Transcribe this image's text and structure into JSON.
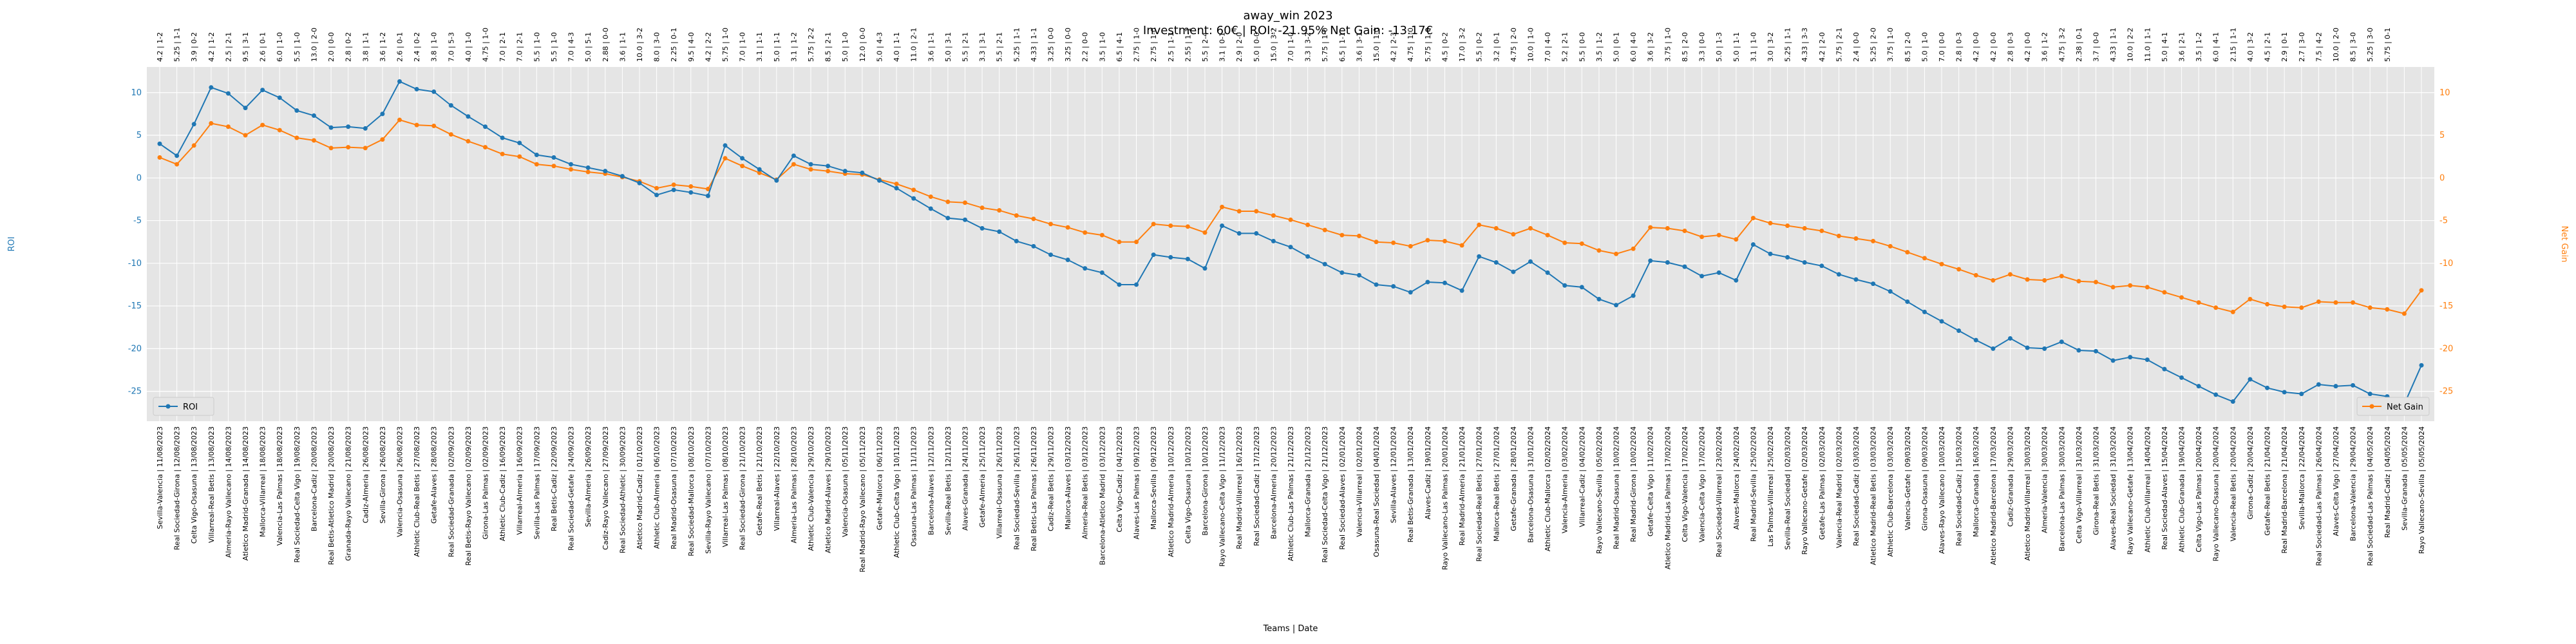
{
  "chart_data": {
    "type": "line",
    "title": "away_win 2023",
    "subtitle": "Investment: 60€ | ROI: -21.95% Net Gain: -13.17€",
    "xlabel": "Teams | Date",
    "ylabel": "ROI",
    "y2label": "Net Gain",
    "ylim": [
      -28.5,
      13
    ],
    "y2lim": [
      -28.5,
      13
    ],
    "yticks": [
      -25,
      -20,
      -15,
      -10,
      -5,
      0,
      5,
      10
    ],
    "y2ticks": [
      -25,
      -20,
      -15,
      -10,
      -5,
      0,
      5,
      10
    ],
    "grid": true,
    "legend": {
      "roi": "ROI",
      "net_gain": "Net Gain",
      "roi_position": "bottom-left",
      "net_gain_position": "bottom-right"
    },
    "colors": {
      "roi": "#1f77b4",
      "net_gain": "#ff7f0e",
      "plot_bg": "#e5e5e5",
      "grid": "#ffffff"
    },
    "categories": [
      "Sevilla-Valencia | 11/08/2023",
      "Real Sociedad-Girona | 12/08/2023",
      "Celta Vigo-Osasuna | 13/08/2023",
      "Villarreal-Real Betis | 13/08/2023",
      "Almeria-Rayo Vallecano | 14/08/2023",
      "Atletico Madrid-Granada | 14/08/2023",
      "Mallorca-Villarreal | 18/08/2023",
      "Valencia-Las Palmas | 18/08/2023",
      "Real Sociedad-Celta Vigo | 19/08/2023",
      "Barcelona-Cadiz | 20/08/2023",
      "Real Betis-Atletico Madrid | 20/08/2023",
      "Granada-Rayo Vallecano | 21/08/2023",
      "Cadiz-Almeria | 26/08/2023",
      "Sevilla-Girona | 26/08/2023",
      "Valencia-Osasuna | 26/08/2023",
      "Athletic Club-Real Betis | 27/08/2023",
      "Getafe-Alaves | 28/08/2023",
      "Real Sociedad-Granada | 02/09/2023",
      "Real Betis-Rayo Vallecano | 02/09/2023",
      "Girona-Las Palmas | 02/09/2023",
      "Athletic Club-Cadiz | 16/09/2023",
      "Villarreal-Almeria | 16/09/2023",
      "Sevilla-Las Palmas | 17/09/2023",
      "Real Betis-Cadiz | 22/09/2023",
      "Real Sociedad-Getafe | 24/09/2023",
      "Sevilla-Almeria | 26/09/2023",
      "Cadiz-Rayo Vallecano | 27/09/2023",
      "Real Sociedad-Athletic | 30/09/2023",
      "Atletico Madrid-Cadiz | 01/10/2023",
      "Athletic Club-Almeria | 06/10/2023",
      "Real Madrid-Osasuna | 07/10/2023",
      "Real Sociedad-Mallorca | 08/10/2023",
      "Sevilla-Rayo Vallecano | 07/10/2023",
      "Villarreal-Las Palmas | 08/10/2023",
      "Real Sociedad-Girona | 21/10/2023",
      "Getafe-Real Betis | 21/10/2023",
      "Villarreal-Alaves | 22/10/2023",
      "Almeria-Las Palmas | 28/10/2023",
      "Athletic Club-Valencia | 29/10/2023",
      "Atletico Madrid-Alaves | 29/10/2023",
      "Valencia-Osasuna | 05/11/2023",
      "Real Madrid-Rayo Vallecano | 05/11/2023",
      "Getafe-Mallorca | 06/11/2023",
      "Athletic Club-Celta Vigo | 10/11/2023",
      "Osasuna-Las Palmas | 11/11/2023",
      "Barcelona-Alaves | 12/11/2023",
      "Sevilla-Real Betis | 12/11/2023",
      "Alaves-Granada | 24/11/2023",
      "Getafe-Almeria | 25/11/2023",
      "Villarreal-Osasuna | 26/11/2023",
      "Real Sociedad-Sevilla | 26/11/2023",
      "Real Betis-Las Palmas | 26/11/2023",
      "Cadiz-Real Betis | 29/11/2023",
      "Mallorca-Alaves | 03/12/2023",
      "Almeria-Real Betis | 03/12/2023",
      "Barcelona-Atletico Madrid | 03/12/2023",
      "Celta Vigo-Cadiz | 04/12/2023",
      "Alaves-Las Palmas | 09/12/2023",
      "Mallorca-Sevilla | 09/12/2023",
      "Atletico Madrid-Almeria | 10/12/2023",
      "Celta Vigo-Osasuna | 10/12/2023",
      "Barcelona-Girona | 10/12/2023",
      "Rayo Vallecano-Celta Vigo | 11/12/2023",
      "Real Madrid-Villarreal | 16/12/2023",
      "Real Sociedad-Cadiz | 17/12/2023",
      "Barcelona-Almeria | 20/12/2023",
      "Athletic Club-Las Palmas | 21/12/2023",
      "Mallorca-Granada | 21/12/2023",
      "Real Sociedad-Celta Vigo | 21/12/2023",
      "Real Sociedad-Alaves | 02/01/2024",
      "Valencia-Villarreal | 02/01/2024",
      "Osasuna-Real Sociedad | 04/01/2024",
      "Sevilla-Alaves | 12/01/2024",
      "Real Betis-Granada | 13/01/2024",
      "Alaves-Cadiz | 19/01/2024",
      "Rayo Vallecano-Las Palmas | 20/01/2024",
      "Real Madrid-Almeria | 21/01/2024",
      "Real Sociedad-Real Betis | 27/01/2024",
      "Mallorca-Real Betis | 27/01/2024",
      "Getafe-Granada | 28/01/2024",
      "Barcelona-Osasuna | 31/01/2024",
      "Athletic Club-Mallorca | 02/02/2024",
      "Valencia-Almeria | 03/02/2024",
      "Villarreal-Cadiz | 04/02/2024",
      "Rayo Vallecano-Sevilla | 05/02/2024",
      "Real Madrid-Osasuna | 10/02/2024",
      "Real Madrid-Girona | 10/02/2024",
      "Getafe-Celta Vigo | 11/02/2024",
      "Atletico Madrid-Las Palmas | 17/02/2024",
      "Celta Vigo-Valencia | 17/02/2024",
      "Valencia-Celta Vigo | 17/02/2024",
      "Real Sociedad-Villarreal | 23/02/2024",
      "Alaves-Mallorca | 24/02/2024",
      "Real Madrid-Sevilla | 25/02/2024",
      "Las Palmas-Villarreal | 25/02/2024",
      "Sevilla-Real Sociedad | 02/03/2024",
      "Rayo Vallecano-Getafe | 02/03/2024",
      "Getafe-Las Palmas | 02/03/2024",
      "Valencia-Real Madrid | 02/03/2024",
      "Real Sociedad-Cadiz | 03/03/2024",
      "Atletico Madrid-Real Betis | 03/03/2024",
      "Athletic Club-Barcelona | 03/03/2024",
      "Valencia-Getafe | 09/03/2024",
      "Girona-Osasuna | 09/03/2024",
      "Alaves-Rayo Vallecano | 10/03/2024",
      "Real Sociedad-Cadiz | 15/03/2024",
      "Mallorca-Granada | 16/03/2024",
      "Atletico Madrid-Barcelona | 17/03/2024",
      "Cadiz-Granada | 29/03/2024",
      "Atletico Madrid-Villarreal | 30/03/2024",
      "Almeria-Valencia | 30/03/2024",
      "Barcelona-Las Palmas | 30/03/2024",
      "Celta Vigo-Villarreal | 31/03/2024",
      "Girona-Real Betis | 31/03/2024",
      "Alaves-Real Sociedad | 31/03/2024",
      "Rayo Vallecano-Getafe | 13/04/2024",
      "Athletic Club-Villarreal | 14/04/2024",
      "Real Sociedad-Alaves | 15/04/2024",
      "Athletic Club-Granada | 19/04/2024",
      "Celta Vigo-Las Palmas | 20/04/2024",
      "Rayo Vallecano-Osasuna | 20/04/2024",
      "Valencia-Real Betis | 20/04/2024",
      "Girona-Cadiz | 20/04/2024",
      "Getafe-Real Betis | 21/04/2024",
      "Real Madrid-Barcelona | 21/04/2024",
      "Sevilla-Mallorca | 22/04/2024",
      "Real Sociedad-Las Palmas | 26/04/2024",
      "Alaves-Celta Vigo | 27/04/2024",
      "Barcelona-Valencia | 29/04/2024",
      "Real Sociedad-Las Palmas | 04/05/2024",
      "Real Madrid-Cadiz | 04/05/2024",
      "Sevilla-Granada | 05/05/2024",
      "Rayo Vallecano-Sevilla | 05/05/2024"
    ],
    "top_labels": [
      "4.2 | 1-2",
      "5.25 | 1-1",
      "3.9 | 0-2",
      "4.2 | 1-2",
      "2.5 | 2-1",
      "9.5 | 3-1",
      "2.6 | 0-1",
      "6.0 | 1-0",
      "5.5 | 1-0",
      "13.0 | 2-0",
      "2.0 | 0-0",
      "2.8 | 0-2",
      "3.8 | 1-1",
      "3.6 | 1-2",
      "2.6 | 0-1",
      "2.4 | 0-2",
      "3.8 | 1-0",
      "7.0 | 5-3",
      "4.0 | 1-0",
      "4.75 | 1-0",
      "7.0 | 2-1",
      "7.0 | 2-1",
      "5.5 | 1-0",
      "5.5 | 1-0",
      "7.0 | 4-3",
      "5.0 | 5-1",
      "2.88 | 0-0",
      "3.6 | 1-1",
      "10.0 | 3-2",
      "8.0 | 3-0",
      "2.25 | 0-1",
      "9.5 | 4-0",
      "4.2 | 2-2",
      "5.75 | 1-0",
      "7.0 | 1-0",
      "3.1 | 1-1",
      "5.0 | 1-1",
      "3.1 | 1-2",
      "5.75 | 2-2",
      "8.5 | 2-1",
      "5.0 | 1-0",
      "12.0 | 0-0",
      "5.0 | 4-3",
      "4.0 | 1-1",
      "11.0 | 2-1",
      "3.6 | 1-1",
      "5.0 | 3-1",
      "5.5 | 2-1",
      "3.3 | 3-1",
      "5.5 | 2-1",
      "5.25 | 1-1",
      "4.33 | 1-1",
      "3.25 | 0-0",
      "3.25 | 0-0",
      "2.2 | 0-0",
      "3.5 | 1-0",
      "6.5 | 4-1",
      "2.75 | 1-0",
      "2.75 | 1-0",
      "2.5 | 1-1",
      "2.55 | 1-1",
      "5.5 | 2-4",
      "3.1 | 0-1",
      "2.9 | 2-0",
      "5.0 | 0-0",
      "15.0 | 3-2",
      "7.0 | 1-0",
      "3.3 | 3-2",
      "5.75 | 1-0",
      "6.5 | 1-1",
      "3.6 | 3-1",
      "15.0 | 1-0",
      "4.2 | 2-3",
      "4.75 | 1-0",
      "5.75 | 1-0",
      "4.5 | 0-2",
      "17.0 | 3-2",
      "5.5 | 0-2",
      "3.2 | 0-1",
      "4.75 | 2-0",
      "10.0 | 1-0",
      "7.0 | 4-0",
      "5.2 | 2-1",
      "5.5 | 0-0",
      "3.5 | 1-2",
      "5.0 | 0-1",
      "6.0 | 4-0",
      "3.6 | 3-2",
      "3.75 | 1-0",
      "8.5 | 2-0",
      "3.3 | 0-0",
      "5.0 | 1-3",
      "5.0 | 1-1",
      "3.1 | 1-0",
      "3.0 | 3-2",
      "5.25 | 1-1",
      "4.33 | 3-3",
      "4.2 | 2-0",
      "5.75 | 2-1",
      "2.4 | 0-0",
      "5.25 | 2-0",
      "3.75 | 1-0",
      "8.5 | 2-0",
      "5.0 | 1-0",
      "7.0 | 0-0",
      "2.8 | 0-3",
      "4.2 | 0-0",
      "4.2 | 0-0",
      "2.8 | 0-3",
      "4.2 | 0-0",
      "3.6 | 1-2",
      "4.75 | 3-2",
      "2.38 | 0-1",
      "3.7 | 0-0",
      "4.33 | 1-1",
      "10.0 | 2-2",
      "11.0 | 1-1",
      "5.0 | 4-1",
      "3.6 | 2-1",
      "3.5 | 1-2",
      "6.0 | 4-1",
      "2.15 | 1-1",
      "4.0 | 3-2",
      "4.5 | 2-1",
      "2.9 | 0-1",
      "2.7 | 3-0",
      "7.5 | 4-2",
      "10.0 | 2-0",
      "8.5 | 3-0",
      "5.25 | 3-0",
      "5.75 | 0-1"
    ],
    "series": [
      {
        "name": "ROI",
        "values": [
          4.0,
          2.6,
          6.3,
          10.6,
          9.9,
          8.2,
          10.3,
          9.4,
          7.9,
          7.3,
          5.9,
          6.0,
          5.8,
          7.5,
          11.3,
          10.4,
          10.1,
          8.5,
          7.2,
          6.0,
          4.7,
          4.1,
          2.7,
          2.4,
          1.6,
          1.2,
          0.8,
          0.2,
          -0.6,
          -2.0,
          -1.4,
          -1.7,
          -2.1,
          3.8,
          2.3,
          1.0,
          -0.3,
          2.6,
          1.6,
          1.4,
          0.8,
          0.6,
          -0.3,
          -1.2,
          -2.4,
          -3.6,
          -4.7,
          -4.9,
          -5.9,
          -6.3,
          -7.4,
          -8.0,
          -9.0,
          -9.6,
          -10.6,
          -11.1,
          -12.5,
          -12.5,
          -9.0,
          -9.3,
          -9.5,
          -10.6,
          -5.6,
          -6.5,
          -6.5,
          -7.4,
          -8.1,
          -9.2,
          -10.1,
          -11.1,
          -11.4,
          -12.5,
          -12.7,
          -13.4,
          -12.2,
          -12.3,
          -13.2,
          -9.2,
          -9.9,
          -11.0,
          -9.8,
          -11.1,
          -12.6,
          -12.8,
          -14.2,
          -14.9,
          -13.8,
          -9.7,
          -9.9,
          -10.4,
          -11.5,
          -11.1,
          -12.0,
          -7.8,
          -8.9,
          -9.3,
          -9.9,
          -10.3,
          -11.3,
          -11.9,
          -12.4,
          -13.3,
          -14.5,
          -15.7,
          -16.8,
          -17.9,
          -19.0,
          -20.0,
          -18.8,
          -19.9,
          -20.0,
          -19.2,
          -20.2,
          -20.3,
          -21.4,
          -21.0,
          -21.3,
          -22.4,
          -23.4,
          -24.4,
          -25.4,
          -26.2,
          -23.6,
          -24.6,
          -25.1,
          -25.3,
          -24.2,
          -24.4,
          -24.3,
          -25.3,
          -25.6,
          -26.5,
          -21.95
        ]
      },
      {
        "name": "Net Gain",
        "values": [
          2.4,
          1.6,
          3.8,
          6.4,
          6.0,
          5.0,
          6.2,
          5.6,
          4.7,
          4.4,
          3.5,
          3.6,
          3.5,
          4.5,
          6.8,
          6.2,
          6.1,
          5.1,
          4.3,
          3.6,
          2.8,
          2.5,
          1.6,
          1.4,
          1.0,
          0.7,
          0.5,
          0.1,
          -0.4,
          -1.2,
          -0.8,
          -1.0,
          -1.3,
          2.3,
          1.4,
          0.6,
          -0.2,
          1.6,
          1.0,
          0.8,
          0.5,
          0.4,
          -0.2,
          -0.7,
          -1.4,
          -2.2,
          -2.8,
          -2.9,
          -3.5,
          -3.8,
          -4.4,
          -4.8,
          -5.4,
          -5.8,
          -6.4,
          -6.7,
          -7.5,
          -7.5,
          -5.4,
          -5.6,
          -5.7,
          -6.4,
          -3.4,
          -3.9,
          -3.9,
          -4.4,
          -4.9,
          -5.5,
          -6.1,
          -6.7,
          -6.8,
          -7.5,
          -7.6,
          -8.0,
          -7.3,
          -7.4,
          -7.9,
          -5.5,
          -5.9,
          -6.6,
          -5.9,
          -6.7,
          -7.6,
          -7.7,
          -8.5,
          -8.9,
          -8.3,
          -5.8,
          -5.9,
          -6.2,
          -6.9,
          -6.7,
          -7.2,
          -4.7,
          -5.3,
          -5.6,
          -5.9,
          -6.2,
          -6.8,
          -7.1,
          -7.4,
          -8.0,
          -8.7,
          -9.4,
          -10.1,
          -10.7,
          -11.4,
          -12.0,
          -11.3,
          -11.9,
          -12.0,
          -11.5,
          -12.1,
          -12.2,
          -12.8,
          -12.6,
          -12.8,
          -13.4,
          -14.0,
          -14.6,
          -15.2,
          -15.7,
          -14.2,
          -14.8,
          -15.1,
          -15.2,
          -14.5,
          -14.6,
          -14.6,
          -15.2,
          -15.4,
          -15.9,
          -13.17
        ]
      }
    ]
  }
}
